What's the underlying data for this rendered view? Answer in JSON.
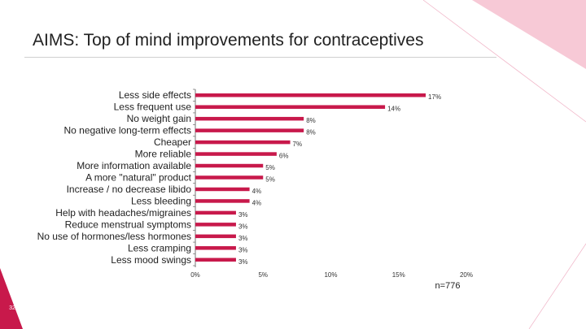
{
  "slide": {
    "page_number": "32",
    "sample_size": "n=776",
    "accent_color": "#c8194b",
    "accent_light": "#f2a7bd"
  },
  "chart_data": {
    "type": "bar",
    "orientation": "horizontal",
    "title": "AIMS: Top of mind improvements for contraceptives",
    "categories": [
      "Less side effects",
      "Less frequent use",
      "No weight gain",
      "No negative long-term effects",
      "Cheaper",
      "More reliable",
      "More information available",
      "A more \"natural\" product",
      "Increase / no decrease libido",
      "Less bleeding",
      "Help with headaches/migraines",
      "Reduce menstrual symptoms",
      "No use of hormones/less hormones",
      "Less cramping",
      "Less mood swings"
    ],
    "values": [
      17,
      14,
      8,
      8,
      7,
      6,
      5,
      5,
      4,
      4,
      3,
      3,
      3,
      3,
      3
    ],
    "value_labels": [
      "17%",
      "14%",
      "8%",
      "8%",
      "7%",
      "6%",
      "5%",
      "5%",
      "4%",
      "4%",
      "3%",
      "3%",
      "3%",
      "3%",
      "3%"
    ],
    "xlim": [
      0,
      20
    ],
    "x_ticks": [
      0,
      5,
      10,
      15,
      20
    ],
    "x_tick_labels": [
      "0%",
      "5%",
      "10%",
      "15%",
      "20%"
    ],
    "xlabel": "",
    "ylabel": "",
    "grid": false,
    "bar_color": "#c8194b"
  }
}
